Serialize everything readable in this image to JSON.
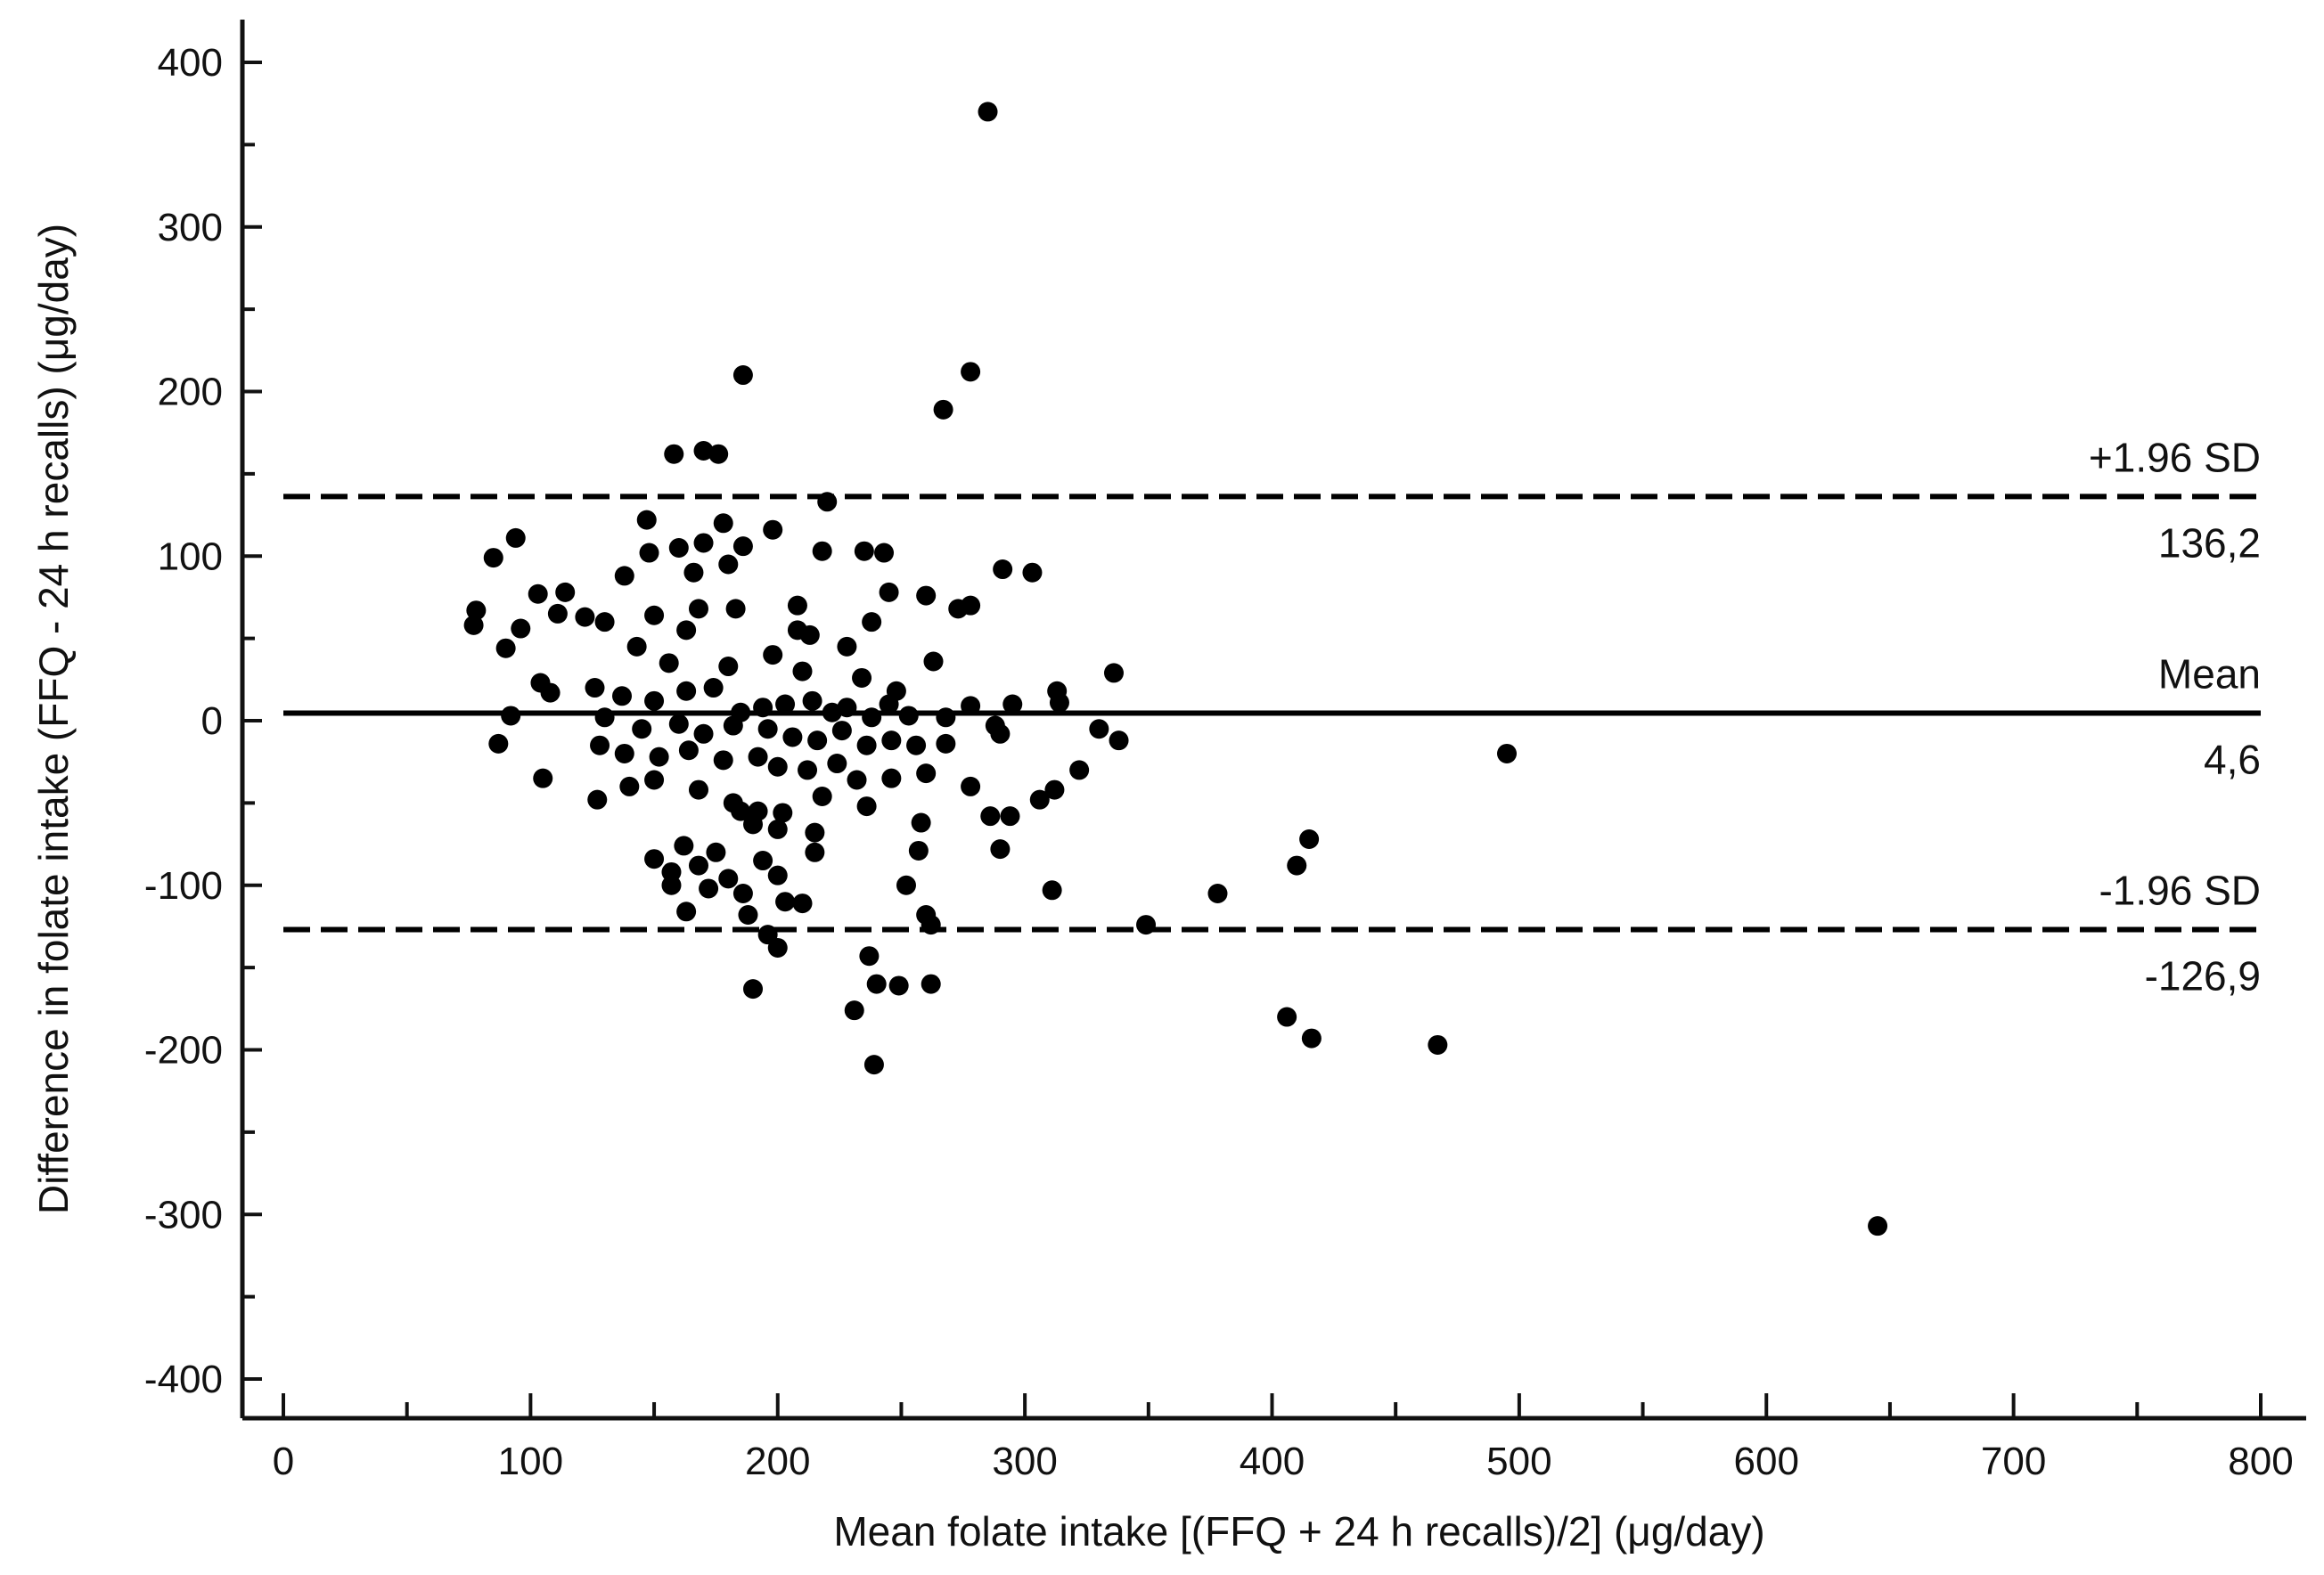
{
  "chart_data": {
    "type": "scatter",
    "title": "",
    "xlabel": "Mean folate intake [(FFQ + 24 h recalls)/2] (μg/day)",
    "ylabel": "Difference in folate intake (FFQ - 24 h recalls) (μg/day)",
    "xlim": [
      0,
      800
    ],
    "ylim": [
      -400,
      400
    ],
    "x_ticks": [
      0,
      100,
      200,
      300,
      400,
      500,
      600,
      700,
      800
    ],
    "y_ticks": [
      -400,
      -300,
      -200,
      -100,
      0,
      100,
      200,
      300,
      400
    ],
    "x_tick_labels": [
      "0",
      "100",
      "200",
      "300",
      "400",
      "500",
      "600",
      "700",
      "800"
    ],
    "y_tick_labels": [
      "-400",
      "-300",
      "-200",
      "-100",
      "0",
      "100",
      "200",
      "300",
      "400"
    ],
    "grid": false,
    "reference_lines": [
      {
        "kind": "upper",
        "label": "+1.96 SD",
        "value_text": "136,2",
        "y": 136.2,
        "style": "dashed"
      },
      {
        "kind": "mean",
        "label": "Mean",
        "value_text": "4,6",
        "y": 4.6,
        "style": "solid"
      },
      {
        "kind": "lower",
        "label": "-1.96 SD",
        "value_text": "-126,9",
        "y": -126.9,
        "style": "dashed"
      }
    ],
    "points": [
      [
        285,
        370
      ],
      [
        186,
        210
      ],
      [
        278,
        212
      ],
      [
        267,
        189
      ],
      [
        158,
        162
      ],
      [
        170,
        164
      ],
      [
        176,
        162
      ],
      [
        220,
        133
      ],
      [
        147,
        122
      ],
      [
        178,
        120
      ],
      [
        198,
        116
      ],
      [
        94,
        111
      ],
      [
        170,
        108
      ],
      [
        160,
        105
      ],
      [
        186,
        106
      ],
      [
        218,
        103
      ],
      [
        235,
        103
      ],
      [
        243,
        102
      ],
      [
        85,
        99
      ],
      [
        148,
        102
      ],
      [
        180,
        95
      ],
      [
        291,
        92
      ],
      [
        303,
        90
      ],
      [
        138,
        88
      ],
      [
        166,
        90
      ],
      [
        114,
        78
      ],
      [
        245,
        78
      ],
      [
        273,
        68
      ],
      [
        278,
        70
      ],
      [
        103,
        77
      ],
      [
        260,
        76
      ],
      [
        78,
        67
      ],
      [
        77,
        58
      ],
      [
        96,
        56
      ],
      [
        111,
        65
      ],
      [
        122,
        63
      ],
      [
        130,
        60
      ],
      [
        150,
        64
      ],
      [
        168,
        68
      ],
      [
        183,
        68
      ],
      [
        208,
        70
      ],
      [
        238,
        60
      ],
      [
        163,
        55
      ],
      [
        208,
        55
      ],
      [
        213,
        52
      ],
      [
        228,
        45
      ],
      [
        90,
        44
      ],
      [
        143,
        45
      ],
      [
        198,
        40
      ],
      [
        263,
        36
      ],
      [
        156,
        35
      ],
      [
        180,
        33
      ],
      [
        210,
        30
      ],
      [
        234,
        26
      ],
      [
        248,
        18
      ],
      [
        313,
        18
      ],
      [
        314,
        11
      ],
      [
        336,
        29
      ],
      [
        278,
        9
      ],
      [
        295,
        10
      ],
      [
        104,
        23
      ],
      [
        108,
        17
      ],
      [
        126,
        20
      ],
      [
        137,
        15
      ],
      [
        150,
        12
      ],
      [
        163,
        18
      ],
      [
        174,
        20
      ],
      [
        185,
        5
      ],
      [
        194,
        8
      ],
      [
        203,
        10
      ],
      [
        214,
        12
      ],
      [
        222,
        5
      ],
      [
        228,
        8
      ],
      [
        238,
        2
      ],
      [
        245,
        10
      ],
      [
        253,
        3
      ],
      [
        268,
        2
      ],
      [
        288,
        -3
      ],
      [
        92,
        3
      ],
      [
        130,
        2
      ],
      [
        145,
        -5
      ],
      [
        160,
        -2
      ],
      [
        170,
        -8
      ],
      [
        182,
        -3
      ],
      [
        196,
        -5
      ],
      [
        206,
        -10
      ],
      [
        216,
        -12
      ],
      [
        226,
        -6
      ],
      [
        236,
        -15
      ],
      [
        246,
        -12
      ],
      [
        256,
        -15
      ],
      [
        268,
        -14
      ],
      [
        290,
        -8
      ],
      [
        330,
        -5
      ],
      [
        338,
        -12
      ],
      [
        87,
        -14
      ],
      [
        128,
        -15
      ],
      [
        138,
        -20
      ],
      [
        152,
        -22
      ],
      [
        164,
        -18
      ],
      [
        178,
        -24
      ],
      [
        192,
        -22
      ],
      [
        200,
        -28
      ],
      [
        212,
        -30
      ],
      [
        224,
        -26
      ],
      [
        232,
        -36
      ],
      [
        246,
        -35
      ],
      [
        260,
        -32
      ],
      [
        322,
        -30
      ],
      [
        495,
        -20
      ],
      [
        105,
        -35
      ],
      [
        127,
        -48
      ],
      [
        140,
        -40
      ],
      [
        150,
        -36
      ],
      [
        168,
        -42
      ],
      [
        182,
        -50
      ],
      [
        192,
        -55
      ],
      [
        202,
        -56
      ],
      [
        218,
        -46
      ],
      [
        236,
        -52
      ],
      [
        278,
        -40
      ],
      [
        312,
        -42
      ],
      [
        306,
        -48
      ],
      [
        294,
        -58
      ],
      [
        286,
        -58
      ],
      [
        185,
        -55
      ],
      [
        190,
        -63
      ],
      [
        200,
        -66
      ],
      [
        215,
        -68
      ],
      [
        258,
        -62
      ],
      [
        175,
        -80
      ],
      [
        162,
        -76
      ],
      [
        150,
        -84
      ],
      [
        157,
        -92
      ],
      [
        168,
        -88
      ],
      [
        180,
        -96
      ],
      [
        194,
        -85
      ],
      [
        200,
        -94
      ],
      [
        215,
        -80
      ],
      [
        257,
        -79
      ],
      [
        290,
        -78
      ],
      [
        415,
        -72
      ],
      [
        410,
        -88
      ],
      [
        157,
        -100
      ],
      [
        163,
        -116
      ],
      [
        172,
        -102
      ],
      [
        186,
        -105
      ],
      [
        203,
        -110
      ],
      [
        210,
        -111
      ],
      [
        252,
        -100
      ],
      [
        260,
        -118
      ],
      [
        262,
        -124
      ],
      [
        311,
        -103
      ],
      [
        378,
        -105
      ],
      [
        349,
        -124
      ],
      [
        188,
        -118
      ],
      [
        196,
        -130
      ],
      [
        200,
        -138
      ],
      [
        237,
        -143
      ],
      [
        240,
        -160
      ],
      [
        249,
        -161
      ],
      [
        262,
        -160
      ],
      [
        190,
        -163
      ],
      [
        231,
        -176
      ],
      [
        239,
        -209
      ],
      [
        406,
        -180
      ],
      [
        416,
        -193
      ],
      [
        467,
        -197
      ],
      [
        645,
        -307
      ]
    ]
  }
}
